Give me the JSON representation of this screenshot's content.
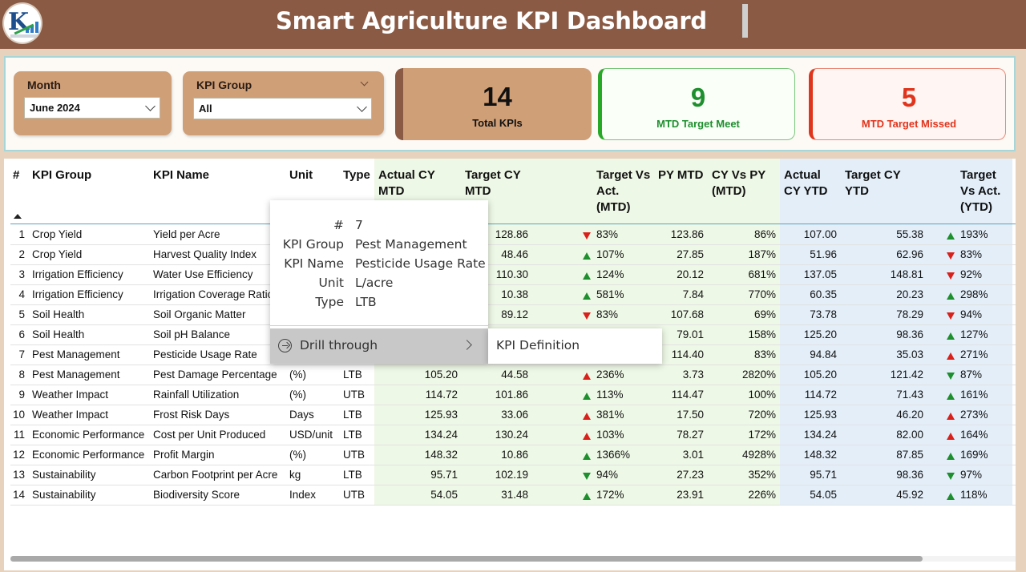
{
  "header": {
    "title": "Smart Agriculture KPI Dashboard",
    "logo_icon": "rk-logo-icon"
  },
  "slicers": {
    "month": {
      "label": "Month",
      "value": "June 2024"
    },
    "kpi_group": {
      "label": "KPI Group",
      "value": "All"
    }
  },
  "cards": {
    "total": {
      "value": "14",
      "caption": "Total KPIs",
      "color": "#8b5a44"
    },
    "meet": {
      "value": "9",
      "caption": "MTD Target Meet",
      "color": "#27a827"
    },
    "missed": {
      "value": "5",
      "caption": "MTD Target Missed",
      "color": "#e0341c"
    }
  },
  "table": {
    "headers": {
      "num": "#",
      "group": "KPI Group",
      "name": "KPI Name",
      "unit": "Unit",
      "type": "Type",
      "actual_mtd_1": "Actual CY",
      "actual_mtd_2": "MTD",
      "target_mtd_1": "Target CY",
      "target_mtd_2": "MTD",
      "tva_mtd_1": "Target Vs",
      "tva_mtd_2": "Act.",
      "tva_mtd_3": "(MTD)",
      "py_mtd": "PY MTD",
      "cyvspy_1": "CY Vs PY",
      "cyvspy_2": "(MTD)",
      "actual_ytd_1": "Actual",
      "actual_ytd_2": "CY YTD",
      "target_ytd_1": "Target CY",
      "target_ytd_2": "YTD",
      "tva_ytd_1": "Target",
      "tva_ytd_2": "Vs Act.",
      "tva_ytd_3": "(YTD)"
    },
    "rows": [
      {
        "num": "1",
        "group": "Crop Yield",
        "name": "Yield per Acre",
        "unit": "",
        "type": "",
        "actual_mtd": "",
        "target_mtd": "128.86",
        "tva_mtd_dir": "down",
        "tva_mtd": "83%",
        "py_mtd": "123.86",
        "cyvspy": "86%",
        "actual_ytd": "107.00",
        "target_ytd": "55.38",
        "tva_ytd_dir": "up-green",
        "tva_ytd": "193%"
      },
      {
        "num": "2",
        "group": "Crop Yield",
        "name": "Harvest Quality Index",
        "unit": "",
        "type": "",
        "actual_mtd": "",
        "target_mtd": "48.46",
        "tva_mtd_dir": "up-green",
        "tva_mtd": "107%",
        "py_mtd": "27.85",
        "cyvspy": "187%",
        "actual_ytd": "51.96",
        "target_ytd": "62.96",
        "tva_ytd_dir": "down",
        "tva_ytd": "83%"
      },
      {
        "num": "3",
        "group": "Irrigation Efficiency",
        "name": "Water Use Efficiency",
        "unit": "",
        "type": "",
        "actual_mtd": "",
        "target_mtd": "110.30",
        "tva_mtd_dir": "up-green",
        "tva_mtd": "124%",
        "py_mtd": "20.12",
        "cyvspy": "681%",
        "actual_ytd": "137.05",
        "target_ytd": "148.81",
        "tva_ytd_dir": "down",
        "tva_ytd": "92%"
      },
      {
        "num": "4",
        "group": "Irrigation Efficiency",
        "name": "Irrigation Coverage Ratio",
        "unit": "",
        "type": "",
        "actual_mtd": "",
        "target_mtd": "10.38",
        "tva_mtd_dir": "up-green",
        "tva_mtd": "581%",
        "py_mtd": "7.84",
        "cyvspy": "770%",
        "actual_ytd": "60.35",
        "target_ytd": "20.23",
        "tva_ytd_dir": "up-green",
        "tva_ytd": "298%"
      },
      {
        "num": "5",
        "group": "Soil Health",
        "name": "Soil Organic Matter",
        "unit": "",
        "type": "",
        "actual_mtd": "",
        "target_mtd": "89.12",
        "tva_mtd_dir": "down",
        "tva_mtd": "83%",
        "py_mtd": "107.68",
        "cyvspy": "69%",
        "actual_ytd": "73.78",
        "target_ytd": "78.29",
        "tva_ytd_dir": "down",
        "tva_ytd": "94%"
      },
      {
        "num": "6",
        "group": "Soil Health",
        "name": "Soil pH Balance",
        "unit": "",
        "type": "",
        "actual_mtd": "",
        "target_mtd": "",
        "tva_mtd_dir": "",
        "tva_mtd": "",
        "py_mtd": "79.01",
        "cyvspy": "158%",
        "actual_ytd": "125.20",
        "target_ytd": "98.36",
        "tva_ytd_dir": "up-green",
        "tva_ytd": "127%"
      },
      {
        "num": "7",
        "group": "Pest Management",
        "name": "Pesticide Usage Rate",
        "unit": "",
        "type": "",
        "actual_mtd": "",
        "target_mtd": "",
        "tva_mtd_dir": "",
        "tva_mtd": "",
        "py_mtd": "114.40",
        "cyvspy": "83%",
        "actual_ytd": "94.84",
        "target_ytd": "35.03",
        "tva_ytd_dir": "up-red",
        "tva_ytd": "271%"
      },
      {
        "num": "8",
        "group": "Pest Management",
        "name": "Pest Damage Percentage",
        "unit": "(%)",
        "type": "LTB",
        "actual_mtd": "105.20",
        "target_mtd": "44.58",
        "tva_mtd_dir": "up-red",
        "tva_mtd": "236%",
        "py_mtd": "3.73",
        "cyvspy": "2820%",
        "actual_ytd": "105.20",
        "target_ytd": "121.42",
        "tva_ytd_dir": "down-green",
        "tva_ytd": "87%"
      },
      {
        "num": "9",
        "group": "Weather Impact",
        "name": "Rainfall Utilization",
        "unit": "(%)",
        "type": "UTB",
        "actual_mtd": "114.72",
        "target_mtd": "101.86",
        "tva_mtd_dir": "up-green",
        "tva_mtd": "113%",
        "py_mtd": "114.47",
        "cyvspy": "100%",
        "actual_ytd": "114.72",
        "target_ytd": "71.43",
        "tva_ytd_dir": "up-green",
        "tva_ytd": "161%"
      },
      {
        "num": "10",
        "group": "Weather Impact",
        "name": "Frost Risk Days",
        "unit": "Days",
        "type": "LTB",
        "actual_mtd": "125.93",
        "target_mtd": "33.06",
        "tva_mtd_dir": "up-red",
        "tva_mtd": "381%",
        "py_mtd": "17.50",
        "cyvspy": "720%",
        "actual_ytd": "125.93",
        "target_ytd": "46.20",
        "tva_ytd_dir": "up-red",
        "tva_ytd": "273%"
      },
      {
        "num": "11",
        "group": "Economic Performance",
        "name": "Cost per Unit Produced",
        "unit": "USD/unit",
        "type": "LTB",
        "actual_mtd": "134.24",
        "target_mtd": "130.24",
        "tva_mtd_dir": "up-red",
        "tva_mtd": "103%",
        "py_mtd": "78.27",
        "cyvspy": "172%",
        "actual_ytd": "134.24",
        "target_ytd": "82.00",
        "tva_ytd_dir": "up-red",
        "tva_ytd": "164%"
      },
      {
        "num": "12",
        "group": "Economic Performance",
        "name": "Profit Margin",
        "unit": "(%)",
        "type": "UTB",
        "actual_mtd": "148.32",
        "target_mtd": "10.86",
        "tva_mtd_dir": "up-green",
        "tva_mtd": "1366%",
        "py_mtd": "3.01",
        "cyvspy": "4928%",
        "actual_ytd": "148.32",
        "target_ytd": "87.85",
        "tva_ytd_dir": "up-green",
        "tva_ytd": "169%"
      },
      {
        "num": "13",
        "group": "Sustainability",
        "name": "Carbon Footprint per Acre",
        "unit": "kg",
        "type": "LTB",
        "actual_mtd": "95.71",
        "target_mtd": "102.19",
        "tva_mtd_dir": "down-green",
        "tva_mtd": "94%",
        "py_mtd": "27.23",
        "cyvspy": "352%",
        "actual_ytd": "95.71",
        "target_ytd": "98.36",
        "tva_ytd_dir": "down-green",
        "tva_ytd": "97%"
      },
      {
        "num": "14",
        "group": "Sustainability",
        "name": "Biodiversity Score",
        "unit": "Index",
        "type": "UTB",
        "actual_mtd": "54.05",
        "target_mtd": "31.48",
        "tva_mtd_dir": "up-green",
        "tva_mtd": "172%",
        "py_mtd": "23.91",
        "cyvspy": "226%",
        "actual_ytd": "54.05",
        "target_ytd": "45.92",
        "tva_ytd_dir": "up-green",
        "tva_ytd": "118%"
      }
    ]
  },
  "tooltip": {
    "fields": [
      {
        "key": "#",
        "value": "7"
      },
      {
        "key": "KPI Group",
        "value": "Pest Management"
      },
      {
        "key": "KPI Name",
        "value": "Pesticide Usage Rate"
      },
      {
        "key": "Unit",
        "value": "L/acre"
      },
      {
        "key": "Type",
        "value": "LTB"
      }
    ],
    "drill_label": "Drill through",
    "submenu_item": "KPI Definition"
  },
  "colors": {
    "green": "#1e8f2e",
    "red": "#d9201a",
    "mtd_bg": "#eef8e6",
    "ytd_bg": "#e3eef9",
    "header_brown": "#8b5a44"
  }
}
